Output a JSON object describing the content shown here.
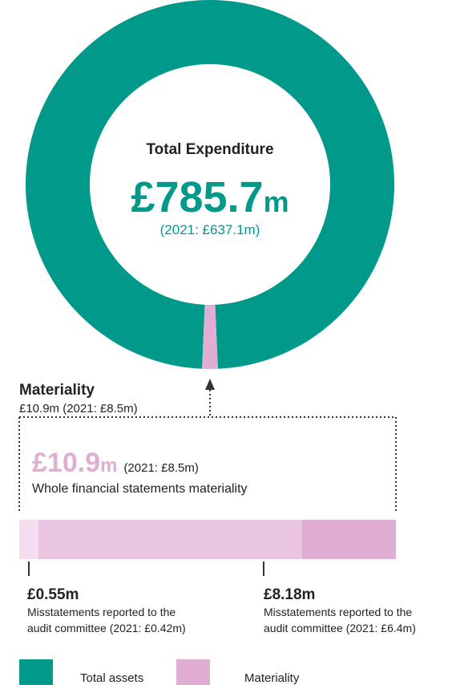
{
  "chart_data": {
    "type": "donut",
    "title": "Total Expenditure",
    "amount": "£785.7",
    "amount_unit": "m",
    "prior": "(2021: £637.1m)",
    "series": [
      {
        "name": "Total assets",
        "color": "#00998a",
        "value": 785.7
      },
      {
        "name": "Materiality",
        "color": "#e0aed3",
        "value": 10.9
      }
    ],
    "materiality": {
      "heading": "Materiality",
      "sub": "£10.9m (2021: £8.5m)",
      "amount": "£10.9",
      "amount_unit": "m",
      "prior": "(2021: £8.5m)",
      "caption": "Whole financial statements materiality"
    },
    "bar": {
      "total": 10.9,
      "colors": [
        "#f5dcef",
        "#eac6e3",
        "#e0aed3"
      ],
      "thresholds": [
        {
          "value": 0.55,
          "label": "£0.55m",
          "lines": [
            "Misstatements reported to the",
            "audit committee (2021: £0.42m)"
          ]
        },
        {
          "value": 8.18,
          "label": "£8.18m",
          "lines": [
            "Misstatements reported to the",
            "audit committee (2021: £6.4m)"
          ]
        }
      ]
    }
  }
}
